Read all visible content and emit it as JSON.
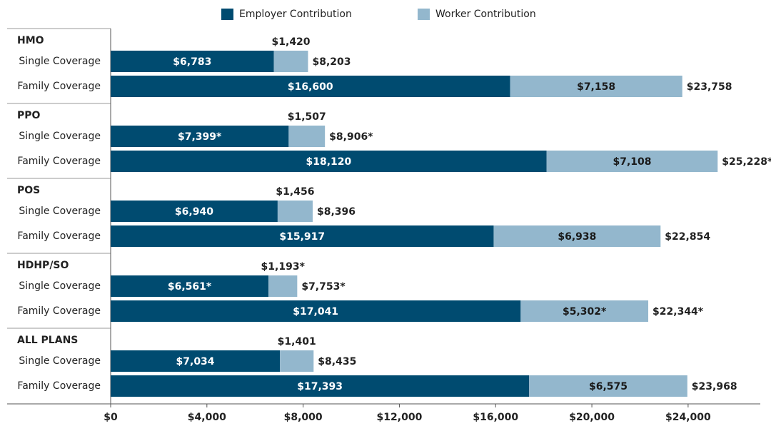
{
  "chart_data": {
    "type": "grouped-stacked-bar",
    "groups": [
      "HMO",
      "PPO",
      "POS",
      "HDHP/SO",
      "ALL PLANS"
    ],
    "categories": [
      "Single Coverage",
      "Family Coverage",
      "Single Coverage",
      "Family Coverage",
      "Single Coverage",
      "Family Coverage",
      "Single Coverage",
      "Family Coverage",
      "Single Coverage",
      "Family Coverage"
    ],
    "series": [
      {
        "name": "Employer Contribution",
        "color": "#004b70",
        "values": [
          6783,
          16600,
          7399,
          18120,
          6940,
          15917,
          6561,
          17041,
          7034,
          17393
        ],
        "value_labels": [
          "$6,783",
          "$16,600",
          "$7,399*",
          "$18,120",
          "$6,940",
          "$15,917",
          "$6,561*",
          "$17,041",
          "$7,034",
          "$17,393"
        ]
      },
      {
        "name": "Worker Contribution",
        "color": "#93b7cd",
        "values": [
          1420,
          7158,
          1507,
          7108,
          1456,
          6938,
          1193,
          5302,
          1401,
          6575
        ],
        "value_labels": [
          "$1,420",
          "$7,158",
          "$1,507",
          "$7,108",
          "$1,456",
          "$6,938",
          "$1,193*",
          "$5,302*",
          "$1,401",
          "$6,575"
        ]
      }
    ],
    "total_labels": [
      "$8,203",
      "$23,758",
      "$8,906*",
      "$25,228*",
      "$8,396",
      "$22,854",
      "$7,753*",
      "$22,344*",
      "$8,435",
      "$23,968"
    ],
    "xlim": [
      0,
      27000
    ],
    "xticks": [
      {
        "value": 0,
        "label": "$0"
      },
      {
        "value": 4000,
        "label": "$4,000"
      },
      {
        "value": 8000,
        "label": "$8,000"
      },
      {
        "value": 12000,
        "label": "$12,000"
      },
      {
        "value": 16000,
        "label": "$16,000"
      },
      {
        "value": 20000,
        "label": "$20,000"
      },
      {
        "value": 24000,
        "label": "$24,000"
      }
    ],
    "legend": "top"
  }
}
